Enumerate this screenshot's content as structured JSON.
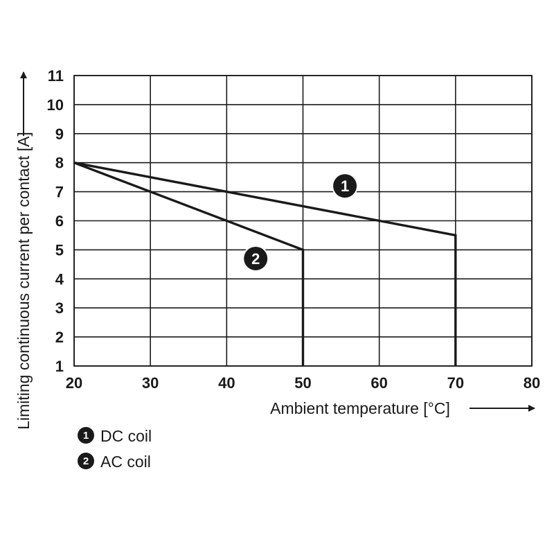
{
  "chart_data": {
    "type": "line",
    "title": "",
    "xlabel": "Ambient temperature [°C]",
    "ylabel": "Limiting continuous current per contact [A]",
    "xlim": [
      20,
      80
    ],
    "ylim": [
      1,
      11
    ],
    "x_ticks": [
      "20",
      "30",
      "40",
      "50",
      "60",
      "70",
      "80"
    ],
    "y_ticks": [
      "1",
      "2",
      "3",
      "4",
      "5",
      "6",
      "7",
      "8",
      "9",
      "10",
      "11"
    ],
    "grid": true,
    "legend_position": "bottom-left",
    "series": [
      {
        "name": "DC coil",
        "marker": "1",
        "points": [
          {
            "x": 20,
            "y": 8
          },
          {
            "x": 70,
            "y": 5.5
          },
          {
            "x": 70,
            "y": 1
          }
        ]
      },
      {
        "name": "AC coil",
        "marker": "2",
        "points": [
          {
            "x": 20,
            "y": 8
          },
          {
            "x": 50,
            "y": 5
          },
          {
            "x": 50,
            "y": 1
          }
        ]
      }
    ],
    "annotations": [
      {
        "series": 0,
        "label": "1",
        "x": 55.5,
        "y": 7.2
      },
      {
        "series": 1,
        "label": "2",
        "x": 43.8,
        "y": 4.7
      }
    ],
    "legend": [
      {
        "marker": "1",
        "label": "DC coil"
      },
      {
        "marker": "2",
        "label": "AC coil"
      }
    ],
    "colors": {
      "line": "#1a1a1a",
      "grid": "#1a1a1a",
      "marker_fill": "#1a1a1a",
      "marker_text": "#ffffff"
    }
  }
}
